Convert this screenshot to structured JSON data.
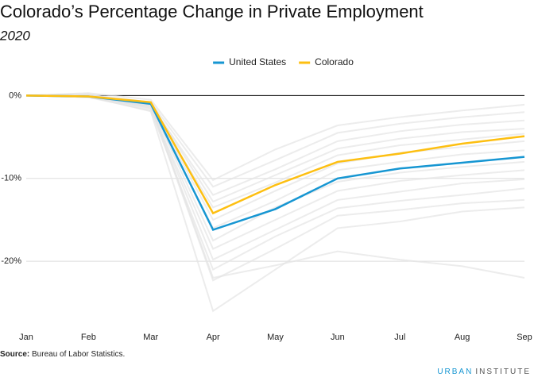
{
  "chart_data": {
    "type": "line",
    "title": "Colorado’s Percentage Change in Private Employment",
    "subtitle": "2020",
    "categories": [
      "Jan",
      "Feb",
      "Mar",
      "Apr",
      "May",
      "Jun",
      "Jul",
      "Aug",
      "Sep"
    ],
    "series": [
      {
        "name": "United States",
        "color": "#1696d2",
        "values": [
          0,
          -0.1,
          -1.0,
          -16.2,
          -13.7,
          -10.0,
          -8.8,
          -8.1,
          -7.4
        ]
      },
      {
        "name": "Colorado",
        "color": "#fdbf11",
        "values": [
          0,
          -0.1,
          -0.8,
          -14.2,
          -10.8,
          -8.0,
          -7.0,
          -5.8,
          -4.9
        ]
      }
    ],
    "background_series": {
      "color": "#e4e4e4",
      "lines": [
        [
          0,
          0.3,
          -0.5,
          -10.2,
          -6.5,
          -3.6,
          -2.6,
          -1.8,
          -1.1
        ],
        [
          0,
          0.1,
          -0.8,
          -11.0,
          -7.8,
          -4.5,
          -3.4,
          -2.6,
          -2.0
        ],
        [
          0,
          0.0,
          -1.1,
          -12.0,
          -8.9,
          -5.5,
          -4.3,
          -3.5,
          -3.0
        ],
        [
          0,
          -0.1,
          -0.9,
          -12.8,
          -9.6,
          -6.4,
          -5.2,
          -4.4,
          -4.0
        ],
        [
          0,
          0.2,
          -1.3,
          -13.5,
          -10.5,
          -7.2,
          -6.0,
          -5.3,
          -4.6
        ],
        [
          0,
          0.0,
          -1.0,
          -15.0,
          -11.5,
          -8.2,
          -6.9,
          -6.2,
          -5.5
        ],
        [
          0,
          -0.2,
          -1.4,
          -16.0,
          -12.7,
          -9.0,
          -8.0,
          -7.1,
          -6.6
        ],
        [
          0,
          0.1,
          -1.2,
          -17.5,
          -13.5,
          -10.4,
          -9.3,
          -8.6,
          -8.0
        ],
        [
          0,
          -0.1,
          -1.6,
          -18.5,
          -15.0,
          -11.5,
          -10.3,
          -9.6,
          -9.0
        ],
        [
          0,
          0.0,
          -1.5,
          -19.8,
          -16.2,
          -12.6,
          -11.6,
          -10.6,
          -10.1
        ],
        [
          0,
          -0.2,
          -1.8,
          -21.0,
          -17.0,
          -13.6,
          -12.7,
          -12.0,
          -11.2
        ],
        [
          0,
          0.0,
          -1.3,
          -22.3,
          -18.5,
          -14.5,
          -13.8,
          -13.0,
          -12.6
        ],
        [
          0,
          -0.1,
          -1.1,
          -22.0,
          -20.5,
          -18.8,
          -19.8,
          -20.6,
          -22.0
        ],
        [
          0,
          -0.1,
          -1.9,
          -26.0,
          -21.0,
          -16.0,
          -15.2,
          -14.0,
          -13.5
        ]
      ]
    },
    "ylim": [
      -26.5,
      1
    ],
    "yticks": [
      {
        "value": 0,
        "label": "0%"
      },
      {
        "value": -10,
        "label": "-10%"
      },
      {
        "value": -20,
        "label": "-20%"
      }
    ],
    "grid": true,
    "source_label": "Source:",
    "source_text": " Bureau of Labor Statistics.",
    "brand": [
      "URBAN",
      "INSTITUTE"
    ]
  }
}
